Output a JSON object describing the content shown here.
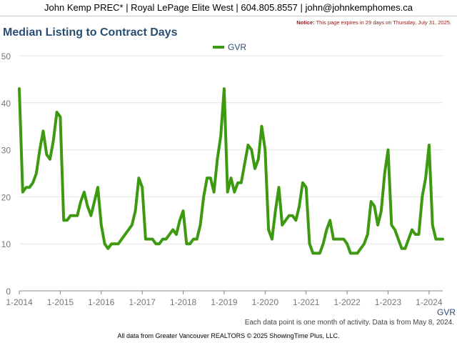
{
  "header": {
    "contact": "John Kemp PREC* | Royal LePage Elite West | 604.805.8557 | john@johnkemphomes.ca"
  },
  "notice": {
    "label": "Notice:",
    "text": "This page expires in 29 days on Thursday, July 31, 2025."
  },
  "footnote": "Each data point is one month of activity. Data is from May 8, 2024.",
  "credit": "All data from Greater Vancouver REALTORS © 2025 ShowingTime Plus, LLC.",
  "colors": {
    "series": "#3d9a10",
    "title": "#2a4d72",
    "axis": "#999999"
  },
  "chart_data": {
    "type": "line",
    "title": "Median Listing to Contract Days",
    "xlabel": "",
    "ylabel": "",
    "ylim": [
      0,
      50
    ],
    "yticks": [
      0,
      10,
      20,
      30,
      40,
      50
    ],
    "xlim": [
      "2014-01",
      "2024-05"
    ],
    "xticks": [
      "1-2014",
      "1-2015",
      "1-2016",
      "1-2017",
      "1-2018",
      "1-2019",
      "1-2020",
      "1-2021",
      "1-2022",
      "1-2023",
      "1-2024"
    ],
    "legend": {
      "position": "top-center",
      "entries": [
        "GVR"
      ]
    },
    "end_label": "GVR",
    "start_month": "2014-01",
    "series": [
      {
        "name": "GVR",
        "color": "#3d9a10",
        "values": [
          43,
          21,
          22,
          22,
          23,
          25,
          30,
          34,
          29,
          28,
          32,
          38,
          37,
          15,
          15,
          16,
          16,
          16,
          19,
          21,
          18,
          16,
          19,
          22,
          14,
          10,
          9,
          10,
          10,
          10,
          11,
          12,
          13,
          14,
          17,
          24,
          22,
          11,
          11,
          11,
          10,
          10,
          11,
          11,
          12,
          13,
          12,
          15,
          17,
          10,
          10,
          11,
          11,
          14,
          20,
          24,
          24,
          21,
          28,
          33,
          43,
          21,
          24,
          21,
          23,
          23,
          27,
          31,
          30,
          26,
          28,
          35,
          30,
          13,
          11,
          17,
          22,
          14,
          15,
          16,
          16,
          15,
          18,
          23,
          22,
          10,
          8,
          8,
          8,
          10,
          13,
          15,
          11,
          11,
          11,
          11,
          10,
          8,
          8,
          8,
          9,
          10,
          12,
          19,
          18,
          14,
          17,
          25,
          30,
          14,
          13,
          11,
          9,
          9,
          11,
          13,
          12,
          12,
          20,
          24,
          31,
          14,
          11,
          11,
          11
        ]
      }
    ]
  }
}
